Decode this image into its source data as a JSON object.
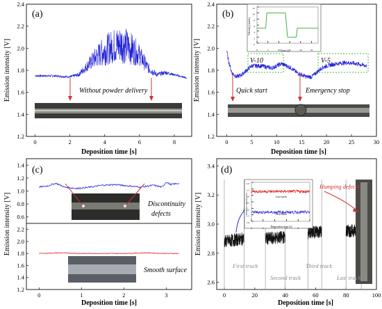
{
  "panels": {
    "a": {
      "label": "(a)",
      "annotation": "Without powder delivery",
      "xlabel": "Deposition time [s]",
      "ylabel": "Emission intensity [V]"
    },
    "b": {
      "label": "(b)",
      "annotations": {
        "v10": "V-10",
        "v5": "V-5",
        "quick_start": "Quick start",
        "emergency_stop": "Emergency stop"
      },
      "inset": {
        "xlabel": "Time (s)",
        "ylabel": "Velocity (mm/s)"
      },
      "xlabel": "Deposition time [s]",
      "ylabel": "Emission intensity [V]"
    },
    "c": {
      "label": "(c)",
      "annotations": {
        "discontinuity_1": "Discontinuity",
        "discontinuity_2": "defects",
        "smooth": "Smooth surface"
      },
      "xlabel": "Deposition time [s]",
      "ylabel": "Emission intensity [V]"
    },
    "d": {
      "label": "(d)",
      "annotations": {
        "humping": "Humping defects",
        "first": "First track",
        "second": "Second track",
        "third": "Third track",
        "last": "Last track"
      },
      "inset": {
        "top_title": "Last track",
        "bottom_title": "First track",
        "xlabel": "Deposition time [s]",
        "ylabel": "Emission intensity [V]"
      },
      "xlabel": "Deposition time [s]",
      "ylabel": "Emission intensity [V]"
    }
  },
  "chart_data": [
    {
      "panel": "a",
      "type": "line",
      "xlabel": "Deposition time [s]",
      "ylabel": "Emission intensity [V]",
      "xlim": [
        -0.5,
        9
      ],
      "ylim": [
        1.2,
        2.4
      ],
      "xticks": [
        0,
        2,
        4,
        6,
        8
      ],
      "yticks": [
        1.2,
        1.4,
        1.6,
        1.8,
        2.0,
        2.2,
        2.4
      ],
      "color": "#1f1fd6",
      "series": [
        {
          "x": [
            0,
            1,
            2,
            2.5,
            3,
            3.5,
            4,
            4.5,
            5,
            5.5,
            6,
            6.5,
            7,
            7.5,
            8,
            8.7
          ],
          "y": [
            1.75,
            1.75,
            1.74,
            1.76,
            1.84,
            1.92,
            1.98,
            2.02,
            2.04,
            2.0,
            1.94,
            1.82,
            1.76,
            1.78,
            1.76,
            1.73
          ],
          "noise": [
            0.01,
            0.01,
            0.01,
            0.02,
            0.05,
            0.1,
            0.14,
            0.16,
            0.18,
            0.15,
            0.1,
            0.05,
            0.02,
            0.02,
            0.01,
            0.01
          ]
        }
      ]
    },
    {
      "panel": "b",
      "type": "line",
      "xlabel": "Deposition time [s]",
      "ylabel": "Emission intensity [V]",
      "xlim": [
        -2,
        30
      ],
      "ylim": [
        1.2,
        2.4
      ],
      "xticks": [
        0,
        5,
        10,
        15,
        20,
        25,
        30
      ],
      "yticks": [
        1.2,
        1.4,
        1.6,
        1.8,
        2.0,
        2.2,
        2.4
      ],
      "color": "#1f1fd6",
      "series": [
        {
          "x": [
            0,
            0.3,
            1,
            2,
            3,
            4,
            5,
            7,
            9,
            11,
            13,
            14,
            15,
            16,
            17,
            18,
            19,
            20,
            22,
            24,
            26,
            28
          ],
          "y": [
            1.98,
            1.9,
            1.78,
            1.74,
            1.76,
            1.8,
            1.84,
            1.84,
            1.82,
            1.86,
            1.82,
            1.78,
            1.76,
            1.74,
            1.74,
            1.78,
            1.82,
            1.84,
            1.86,
            1.87,
            1.86,
            1.84
          ],
          "noise": [
            0.02,
            0.02,
            0.02,
            0.02,
            0.02,
            0.02,
            0.02,
            0.02,
            0.02,
            0.02,
            0.02,
            0.02,
            0.02,
            0.02,
            0.02,
            0.02,
            0.02,
            0.02,
            0.02,
            0.02,
            0.02,
            0.02
          ]
        }
      ],
      "inset": {
        "xlim": [
          0,
          28
        ],
        "ylim": [
          0,
          12
        ],
        "xticks": [
          0,
          5,
          10,
          15,
          20,
          25
        ],
        "yticks": [
          0,
          2,
          4,
          6,
          8,
          10,
          12
        ],
        "color": "#2ea82e",
        "series": [
          {
            "x": [
              0,
              4,
              4.5,
              13,
              14,
              15,
              16,
              18,
              18.5,
              28
            ],
            "y": [
              5,
              5,
              10,
              10,
              2,
              2,
              2,
              2,
              5,
              5
            ]
          }
        ]
      }
    },
    {
      "panel": "c",
      "type": "line",
      "xlabel": "Deposition time [s]",
      "ylabel": "Emission intensity [V]",
      "xlim": [
        -0.3,
        3.6
      ],
      "xticks": [
        0,
        1,
        2,
        3
      ],
      "subplots": [
        {
          "ylim": [
            0.5,
            1.5
          ],
          "yticks": [
            0.6,
            0.8,
            1.0,
            1.2,
            1.4
          ],
          "color": "#2a2ae0",
          "x": [
            0,
            0.2,
            0.4,
            0.6,
            0.9,
            1.2,
            1.5,
            1.8,
            2.1,
            2.4,
            2.7,
            2.9,
            3.0,
            3.1,
            3.3
          ],
          "y": [
            1.06,
            1.08,
            1.12,
            1.06,
            1.04,
            1.06,
            1.09,
            1.1,
            1.08,
            1.06,
            1.09,
            1.06,
            1.14,
            1.1,
            1.12
          ]
        },
        {
          "ylim": [
            1.2,
            2.3
          ],
          "yticks": [
            1.2,
            1.4,
            1.6,
            1.8,
            2.0,
            2.2
          ],
          "color": "#e02020",
          "x": [
            0,
            0.5,
            1,
            1.5,
            2,
            2.5,
            3,
            3.3
          ],
          "y": [
            1.8,
            1.81,
            1.8,
            1.8,
            1.8,
            1.81,
            1.8,
            1.8
          ]
        }
      ]
    },
    {
      "panel": "d",
      "type": "line",
      "xlabel": "Deposition time [s]",
      "ylabel": "Emission intensity [V]",
      "xlim": [
        -5,
        100
      ],
      "ylim": [
        2.55,
        3.45
      ],
      "xticks": [
        0,
        20,
        40,
        60,
        80,
        100
      ],
      "yticks": [
        2.6,
        2.8,
        3.0,
        3.2,
        3.4
      ],
      "color": "#111111",
      "track_boundaries": [
        0,
        13,
        27,
        40,
        55,
        64,
        80,
        90
      ],
      "series": [
        {
          "name": "First track",
          "x": [
            0,
            13
          ],
          "y": [
            2.88,
            2.9
          ]
        },
        {
          "name": "Second track",
          "x": [
            27,
            40
          ],
          "y": [
            2.9,
            2.91
          ]
        },
        {
          "name": "Third track",
          "x": [
            55,
            64
          ],
          "y": [
            2.94,
            2.95
          ]
        },
        {
          "name": "Last track",
          "x": [
            80,
            90
          ],
          "y": [
            2.95,
            2.96
          ]
        }
      ],
      "inset": {
        "ylim": [
          1.0,
          4.0
        ],
        "yticks": [
          1.0,
          1.5,
          2.0,
          2.5,
          3.0,
          3.5,
          4.0
        ],
        "xlim": [
          0,
          10
        ],
        "xticks": [
          0,
          2,
          4,
          6,
          8,
          10
        ],
        "series": [
          {
            "name": "Last track",
            "color": "#e02020",
            "level": 3.3
          },
          {
            "name": "First track",
            "color": "#2a2ae0",
            "level": 1.7
          }
        ]
      }
    }
  ]
}
